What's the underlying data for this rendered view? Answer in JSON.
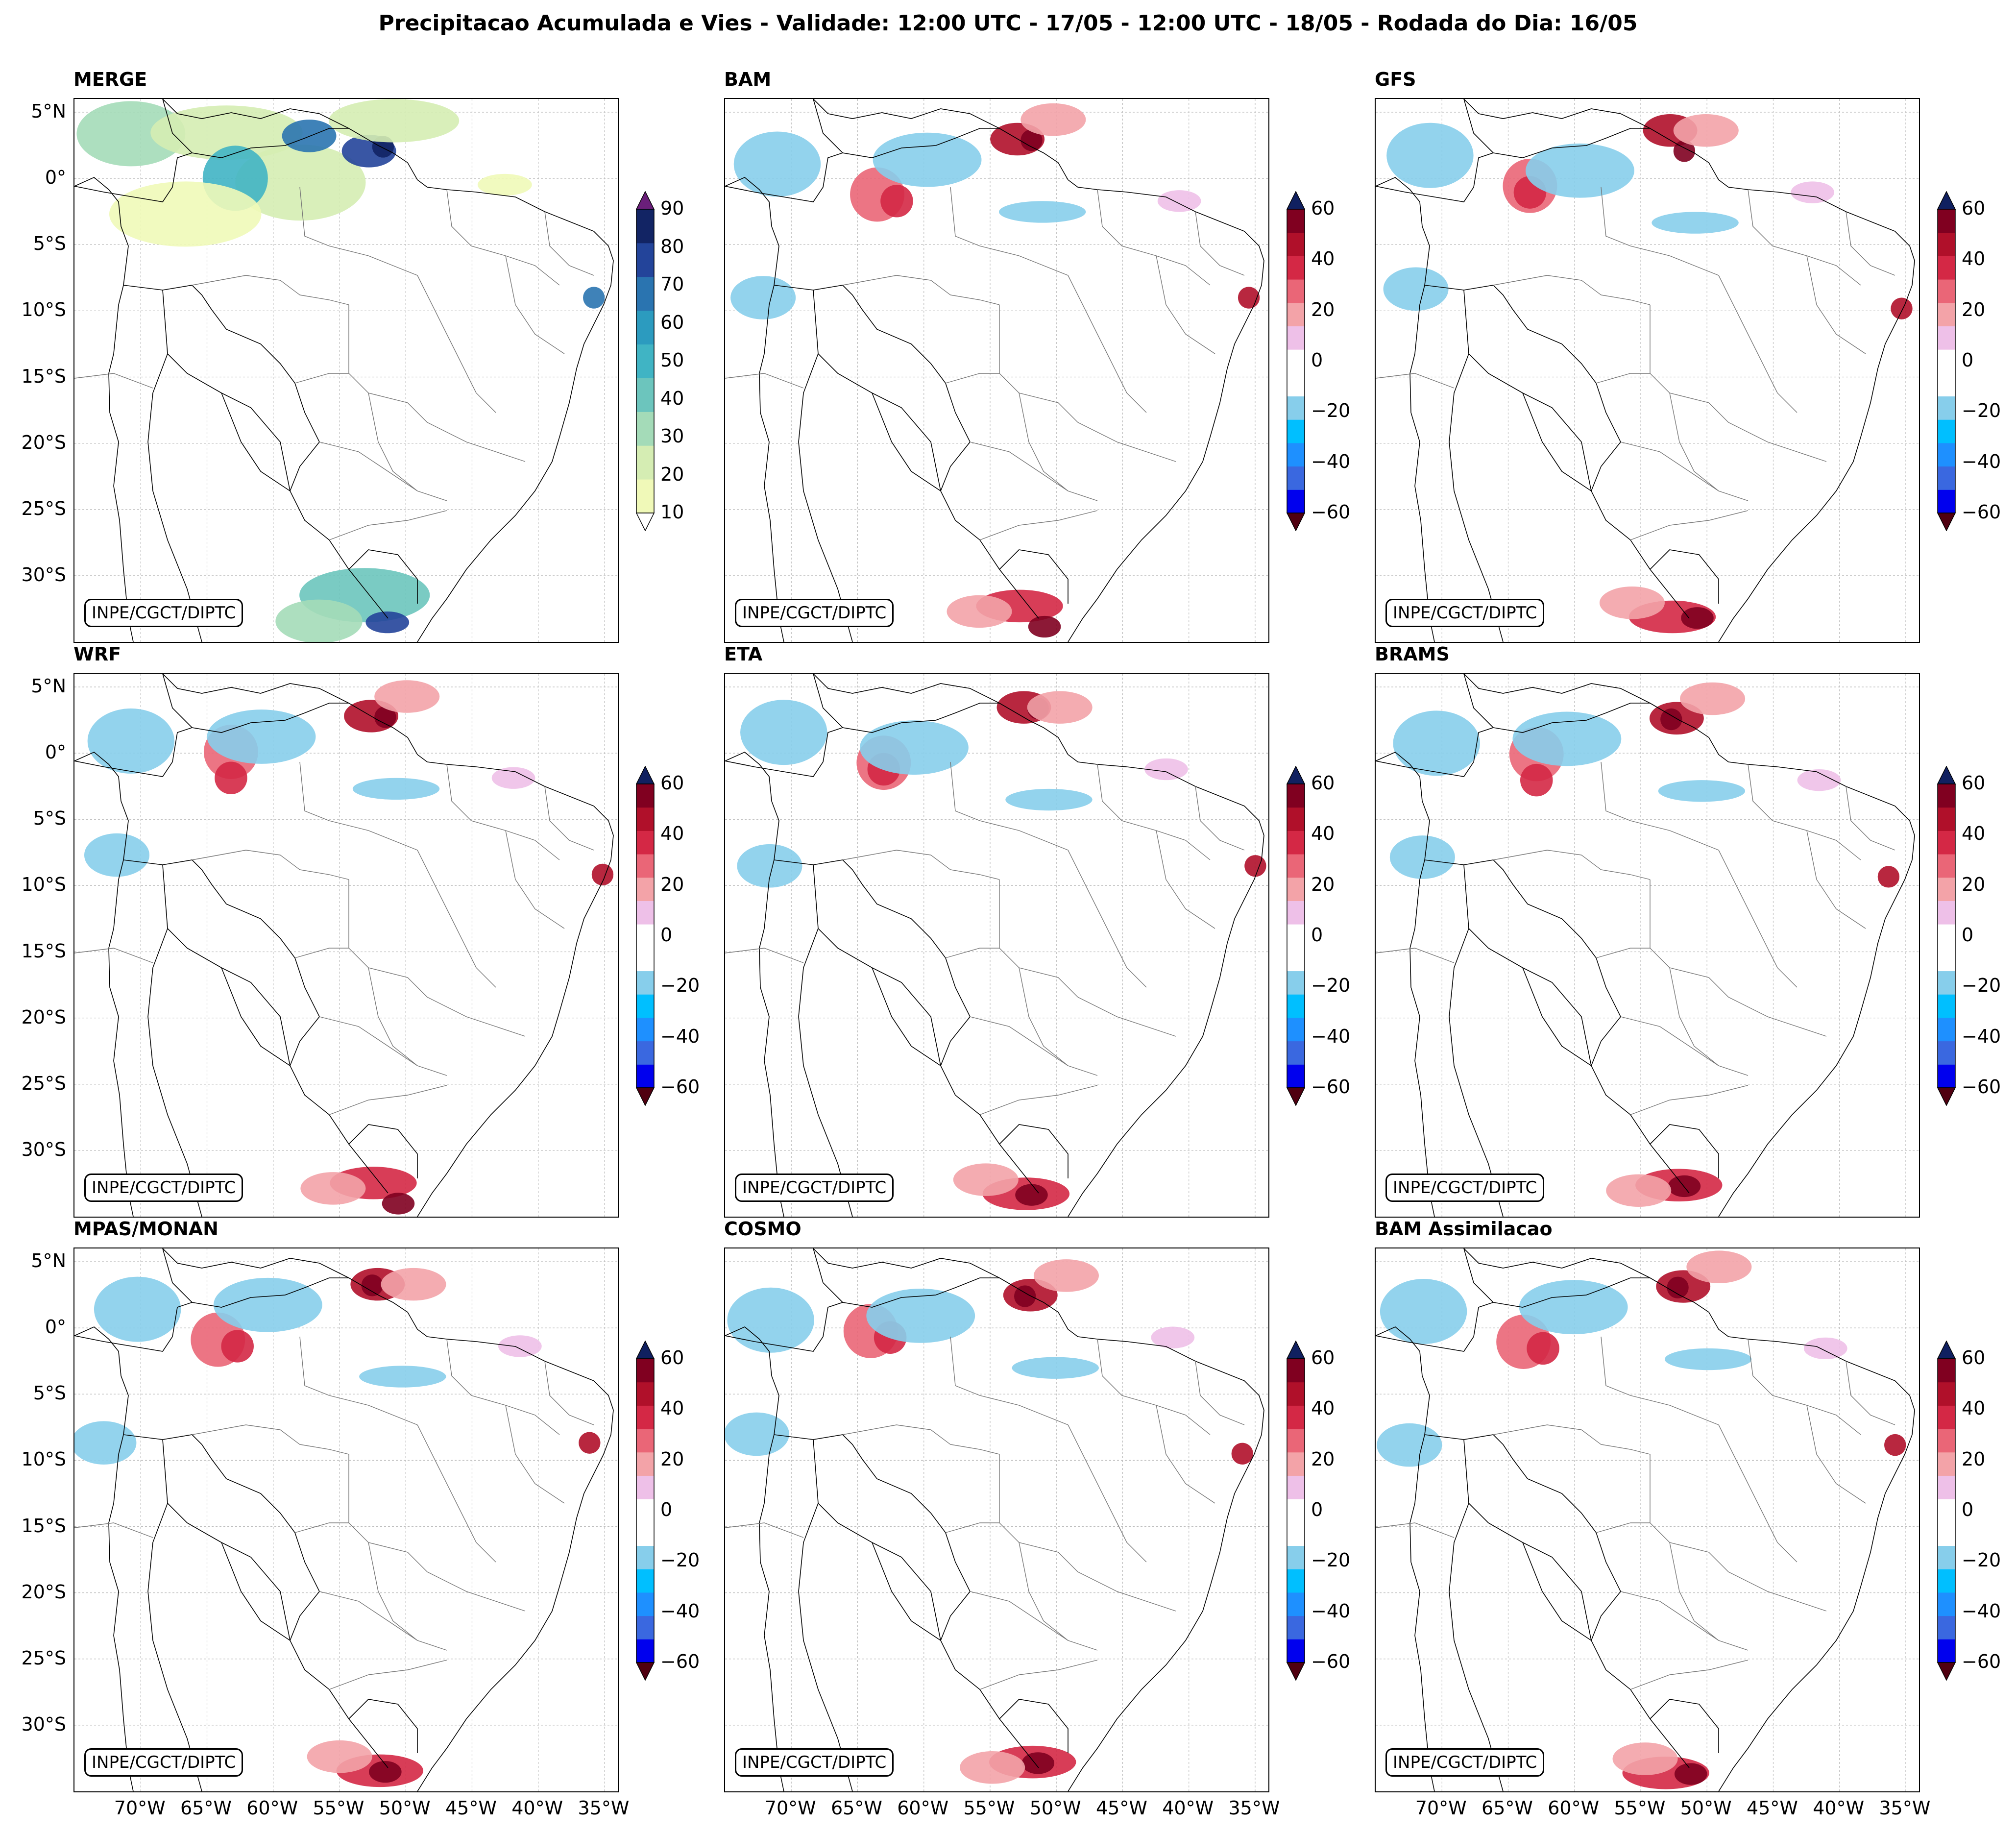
{
  "figure": {
    "title": "Precipitacao Acumulada e Vies - Validade: 12:00 UTC - 17/05 - 12:00 UTC - 18/05 - Rodada do Dia: 16/05",
    "credit": "INPE/CGCT/DIPTC"
  },
  "axes": {
    "lat_labels": [
      "5°N",
      "0°",
      "5°S",
      "10°S",
      "15°S",
      "20°S",
      "25°S",
      "30°S"
    ],
    "lon_labels": [
      "70°W",
      "65°W",
      "60°W",
      "55°W",
      "50°W",
      "45°W",
      "40°W",
      "35°W"
    ],
    "lon_range": [
      -75,
      -34
    ],
    "lat_range": [
      -35,
      6
    ]
  },
  "colorbars": {
    "precip": {
      "ticks": [
        "90",
        "80",
        "70",
        "60",
        "50",
        "40",
        "30",
        "20",
        "10"
      ],
      "colors": [
        "#f0f9b8",
        "#d5edb3",
        "#a4dbb8",
        "#6cc5bd",
        "#40b4c4",
        "#2c9bbf",
        "#2a74b0",
        "#23449a",
        "#122464"
      ],
      "over_color": "#6a1f7a",
      "under_color": "#ffffff"
    },
    "bias": {
      "ticks": [
        "60",
        "40",
        "20",
        "0",
        "−20",
        "−40",
        "−60"
      ],
      "colors": [
        "#0000ee",
        "#3a68e0",
        "#1e90ff",
        "#00bfff",
        "#87ceeb",
        "#ffffff",
        "#ffffff",
        "#eec0e8",
        "#f3a3a8",
        "#ea6677",
        "#d42845",
        "#b0102a",
        "#800020"
      ],
      "over_color": "#102060",
      "under_color": "#500010"
    }
  },
  "panels": [
    {
      "title": "MERGE",
      "kind": "precip"
    },
    {
      "title": "BAM",
      "kind": "bias"
    },
    {
      "title": "GFS",
      "kind": "bias"
    },
    {
      "title": "WRF",
      "kind": "bias"
    },
    {
      "title": "ETA",
      "kind": "bias"
    },
    {
      "title": "BRAMS",
      "kind": "bias"
    },
    {
      "title": "MPAS/MONAN",
      "kind": "bias"
    },
    {
      "title": "COSMO",
      "kind": "bias"
    },
    {
      "title": "BAM Assimilacao",
      "kind": "bias"
    }
  ]
}
